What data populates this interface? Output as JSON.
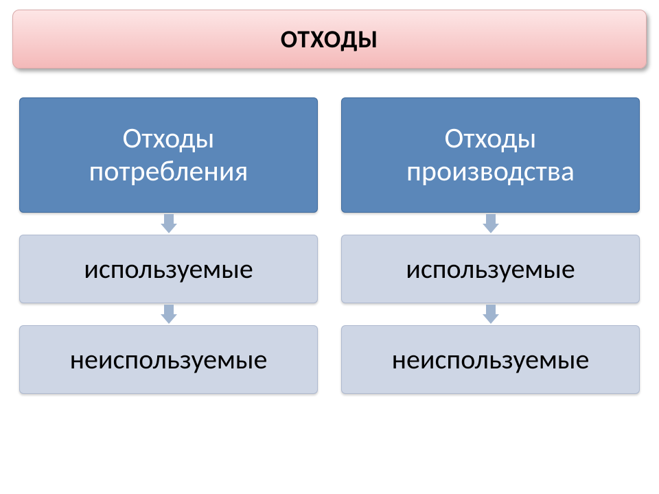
{
  "title": {
    "text": "ОТХОДЫ",
    "fontsize": 36,
    "color": "#000000",
    "background_gradient_top": "#fde6e6",
    "background_gradient_bottom": "#f4b9b9",
    "border_color": "#d9a9a9"
  },
  "diagram": {
    "type": "flowchart",
    "columns": [
      {
        "id": "consumption",
        "boxes": [
          {
            "lines": [
              "Отходы",
              "потребления"
            ],
            "bg": "#5b87b9",
            "fg": "#ffffff",
            "border": "#3f6a9c",
            "fontsize": 42,
            "height": 168
          },
          {
            "lines": [
              "используемые"
            ],
            "bg": "#ced6e5",
            "fg": "#000000",
            "border": "#aeb9cf",
            "fontsize": 40,
            "height": 100
          },
          {
            "lines": [
              "неиспользуемые"
            ],
            "bg": "#ced6e5",
            "fg": "#000000",
            "border": "#aeb9cf",
            "fontsize": 40,
            "height": 100
          }
        ],
        "arrow_color": "#9fb4cf"
      },
      {
        "id": "production",
        "boxes": [
          {
            "lines": [
              "Отходы",
              "производства"
            ],
            "bg": "#5b87b9",
            "fg": "#ffffff",
            "border": "#3f6a9c",
            "fontsize": 42,
            "height": 168
          },
          {
            "lines": [
              "используемые"
            ],
            "bg": "#ced6e5",
            "fg": "#000000",
            "border": "#aeb9cf",
            "fontsize": 40,
            "height": 100
          },
          {
            "lines": [
              "неиспользуемые"
            ],
            "bg": "#ced6e5",
            "fg": "#000000",
            "border": "#aeb9cf",
            "fontsize": 40,
            "height": 100
          }
        ],
        "arrow_color": "#9fb4cf"
      }
    ]
  }
}
